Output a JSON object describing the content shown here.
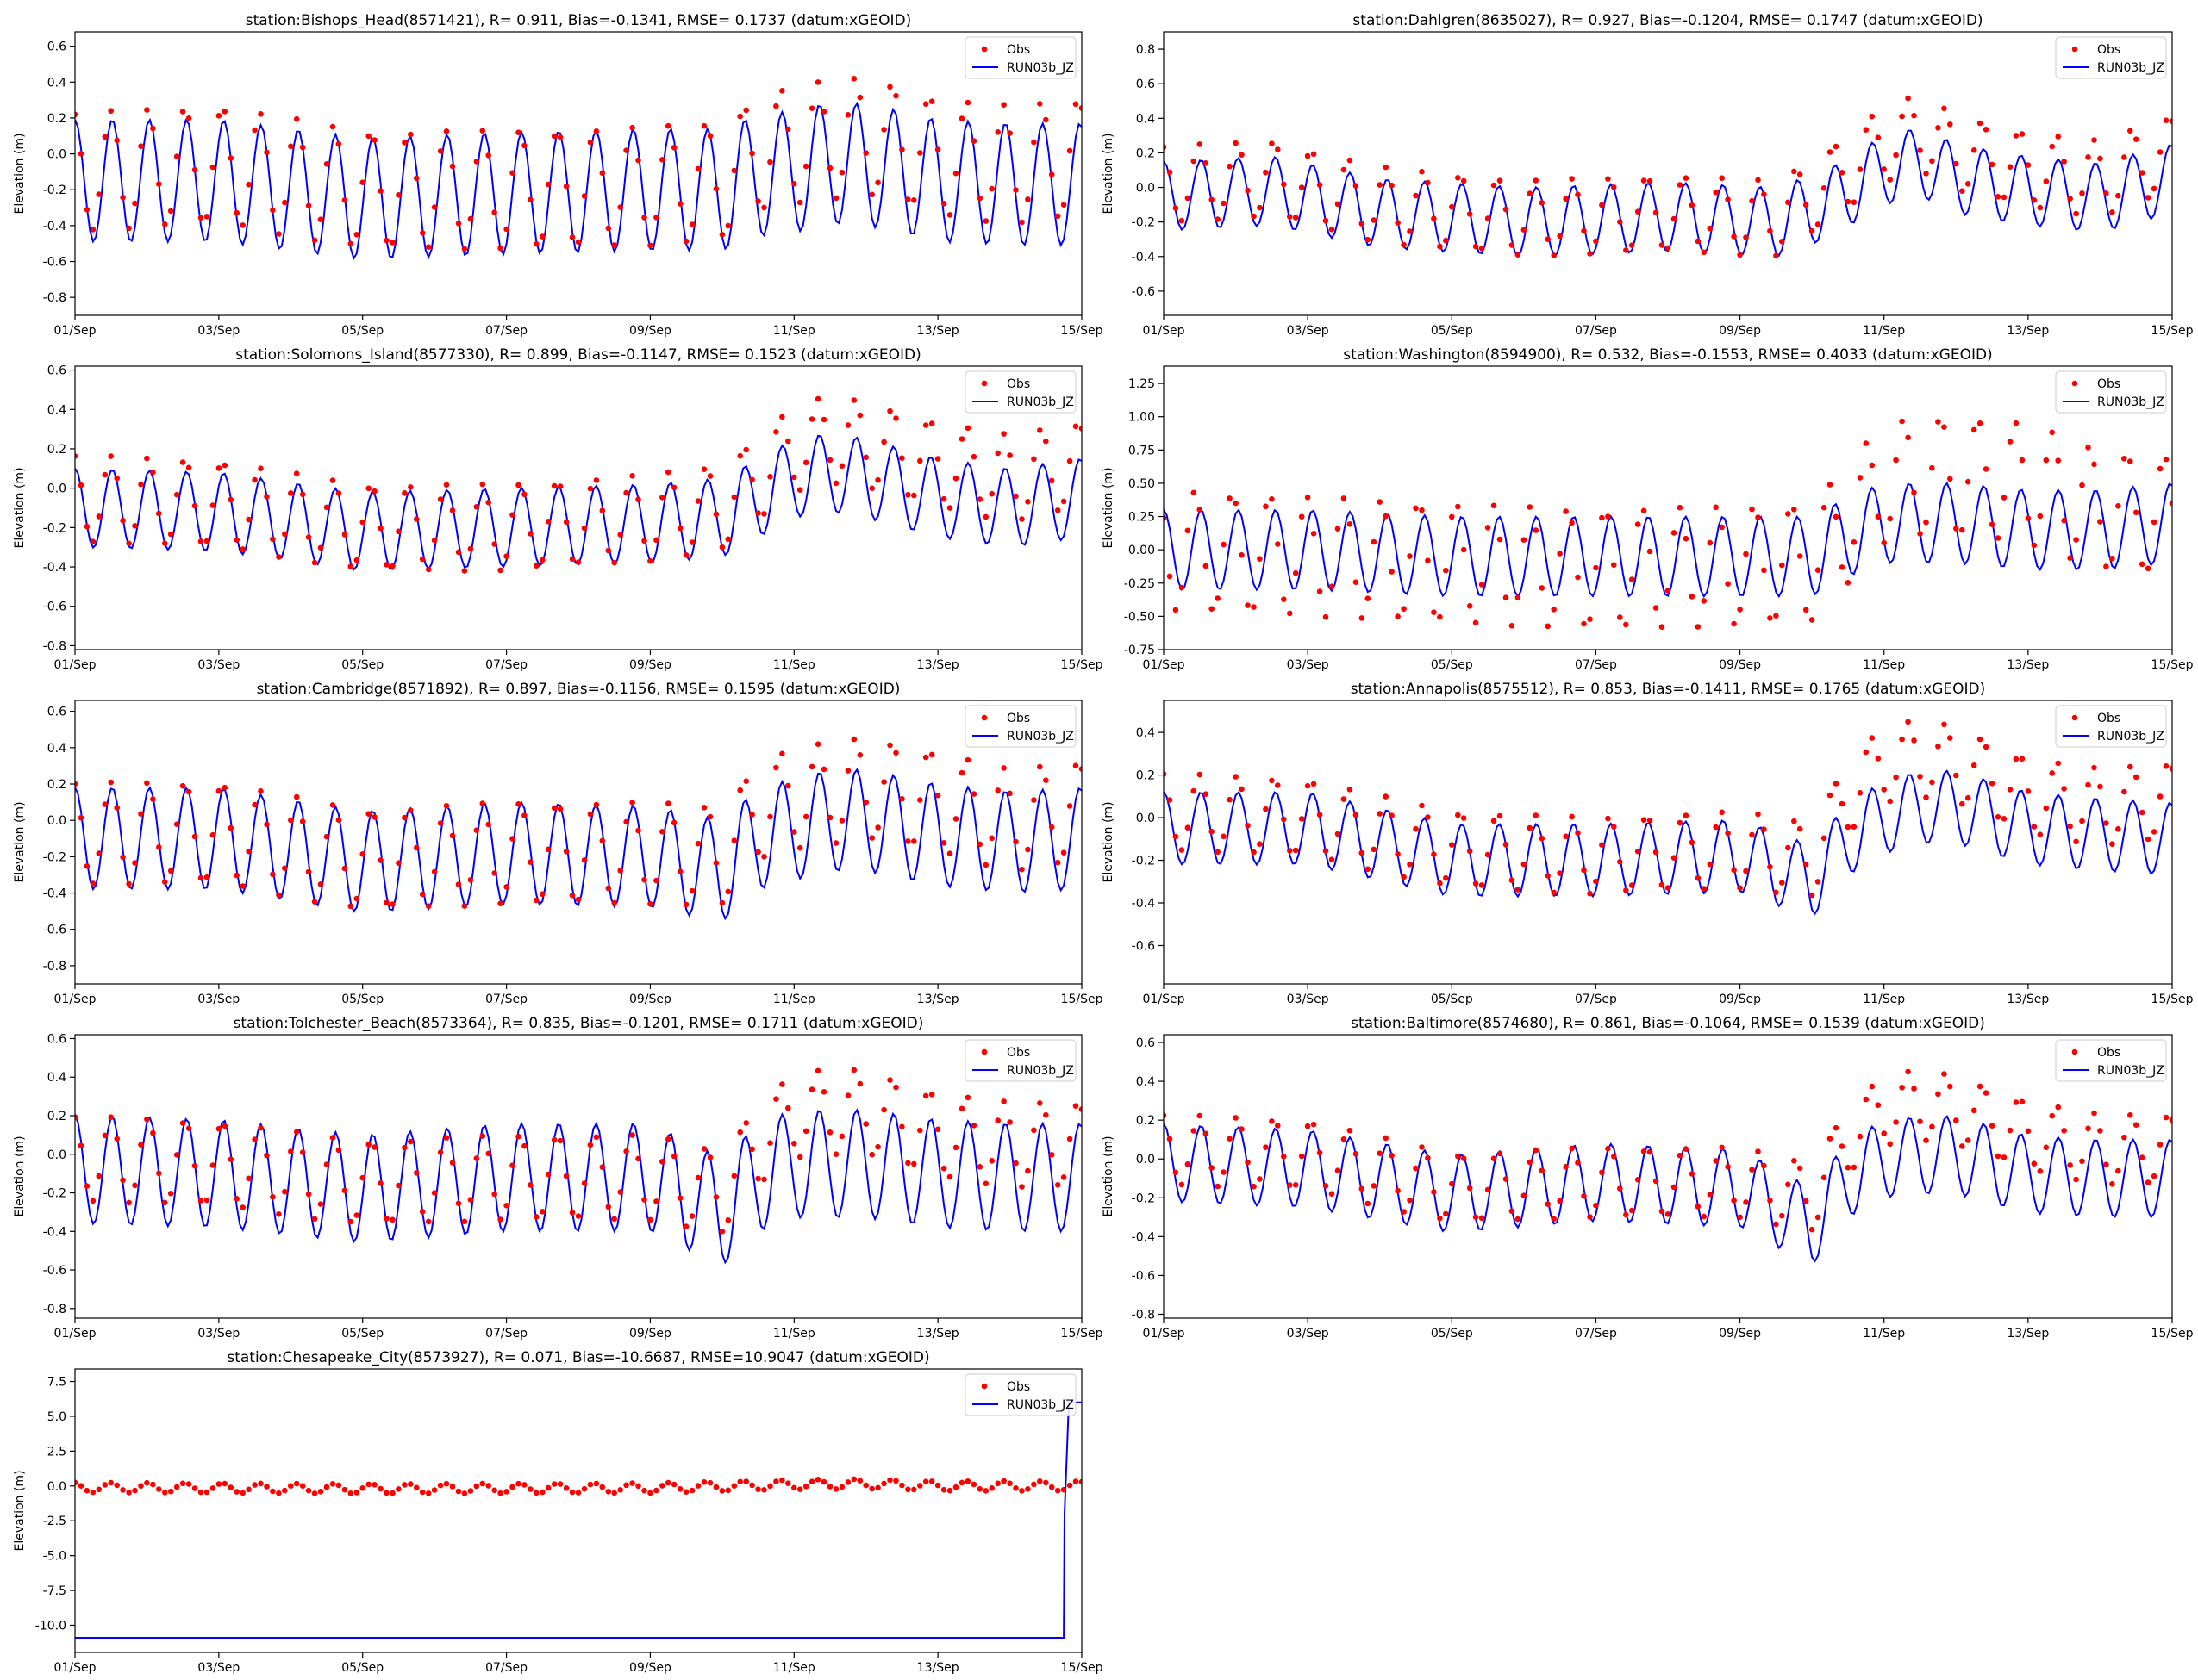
{
  "figure": {
    "background": "#ffffff"
  },
  "colors": {
    "obs": "#ff0000",
    "model": "#0000ff",
    "axis": "#000000"
  },
  "legend": {
    "obs_label": "Obs",
    "model_label": "RUN03b_JZ",
    "placement": "upper right"
  },
  "common": {
    "ylabel": "Elevation (m)",
    "xlim_days": [
      0,
      14
    ],
    "xticks": [
      "01/Sep",
      "03/Sep",
      "05/Sep",
      "07/Sep",
      "09/Sep",
      "11/Sep",
      "13/Sep",
      "15/Sep"
    ],
    "tide_period_hours": 12.42
  },
  "chart_data": [
    {
      "type": "line",
      "station": "Bishops_Head",
      "title": "station:Bishops_Head(8571421), R= 0.911, Bias=-0.1341, RMSE= 0.1737 (datum:xGEOID)",
      "ylim": [
        -0.9,
        0.68
      ],
      "yticks": [
        -0.8,
        -0.6,
        -0.4,
        -0.2,
        0.0,
        0.2,
        0.4,
        0.6
      ],
      "series": [
        {
          "name": "Obs",
          "kind": "points",
          "mean_x": [
            0,
            2,
            4,
            6,
            8,
            9,
            9.5,
            10,
            10.5,
            11,
            11.5,
            12,
            13,
            14
          ],
          "mean_y": [
            -0.1,
            -0.06,
            -0.2,
            -0.2,
            -0.18,
            -0.15,
            0.0,
            0.05,
            0.08,
            0.1,
            0.05,
            -0.02,
            -0.06,
            -0.02
          ],
          "amplitude": 0.33,
          "phase_hours": -0.5
        },
        {
          "name": "RUN03b_JZ",
          "kind": "line",
          "mean_x": [
            0,
            2,
            4,
            6,
            8,
            9,
            9.5,
            10,
            10.5,
            11,
            11.5,
            12,
            13,
            14
          ],
          "mean_y": [
            -0.15,
            -0.15,
            -0.25,
            -0.22,
            -0.2,
            -0.2,
            -0.12,
            -0.1,
            -0.05,
            -0.06,
            -0.1,
            -0.15,
            -0.17,
            -0.17
          ],
          "amplitude": 0.34,
          "phase_hours": 0.0
        }
      ]
    },
    {
      "type": "line",
      "station": "Dahlgren",
      "title": "station:Dahlgren(8635027), R= 0.927, Bias=-0.1204, RMSE= 0.1747 (datum:xGEOID)",
      "ylim": [
        -0.74,
        0.9
      ],
      "yticks": [
        -0.6,
        -0.4,
        -0.2,
        0.0,
        0.2,
        0.4,
        0.6,
        0.8
      ],
      "series": [
        {
          "name": "Obs",
          "kind": "points",
          "mean_x": [
            0,
            1.5,
            3,
            5,
            7,
            8.5,
            9.2,
            10,
            10.5,
            11,
            12,
            13,
            14
          ],
          "mean_y": [
            0.02,
            0.05,
            -0.1,
            -0.18,
            -0.15,
            -0.18,
            0.0,
            0.25,
            0.32,
            0.2,
            0.1,
            0.05,
            0.2
          ],
          "amplitude": 0.22,
          "phase_hours": -0.5
        },
        {
          "name": "RUN03b_JZ",
          "kind": "line",
          "mean_x": [
            0,
            1.5,
            3,
            5,
            7,
            8.5,
            9.2,
            10,
            10.5,
            11,
            12,
            13,
            14
          ],
          "mean_y": [
            -0.05,
            -0.02,
            -0.15,
            -0.2,
            -0.17,
            -0.2,
            -0.1,
            0.1,
            0.15,
            0.05,
            -0.02,
            -0.06,
            0.05
          ],
          "amplitude": 0.2,
          "phase_hours": 0.0
        }
      ]
    },
    {
      "type": "line",
      "station": "Solomons_Island",
      "title": "station:Solomons_Island(8577330), R= 0.899, Bias=-0.1147, RMSE= 0.1523 (datum:xGEOID)",
      "ylim": [
        -0.82,
        0.62
      ],
      "yticks": [
        -0.8,
        -0.6,
        -0.4,
        -0.2,
        0.0,
        0.2,
        0.4,
        0.6
      ],
      "series": [
        {
          "name": "Obs",
          "kind": "points",
          "mean_x": [
            0,
            2,
            4,
            6,
            8,
            9,
            9.5,
            10,
            10.5,
            11,
            12,
            13,
            14
          ],
          "mean_y": [
            -0.05,
            -0.08,
            -0.2,
            -0.2,
            -0.15,
            -0.1,
            0.05,
            0.2,
            0.25,
            0.22,
            0.12,
            0.05,
            0.12
          ],
          "amplitude": 0.22,
          "phase_hours": -0.5
        },
        {
          "name": "RUN03b_JZ",
          "kind": "line",
          "mean_x": [
            0,
            2,
            4,
            6,
            8,
            9,
            9.5,
            10,
            10.5,
            11,
            12,
            13,
            14
          ],
          "mean_y": [
            -0.1,
            -0.12,
            -0.22,
            -0.2,
            -0.18,
            -0.15,
            -0.05,
            0.05,
            0.08,
            0.05,
            -0.05,
            -0.1,
            -0.05
          ],
          "amplitude": 0.2,
          "phase_hours": 0.0
        }
      ]
    },
    {
      "type": "line",
      "station": "Washington",
      "title": "station:Washington(8594900), R= 0.532, Bias=-0.1553, RMSE= 0.4033 (datum:xGEOID)",
      "ylim": [
        -0.75,
        1.38
      ],
      "yticks": [
        -0.75,
        -0.5,
        -0.25,
        0.0,
        0.25,
        0.5,
        0.75,
        1.0,
        1.25
      ],
      "series": [
        {
          "name": "Obs",
          "kind": "points",
          "mean_x": [
            0,
            2,
            4,
            6,
            8,
            9,
            9.5,
            10,
            10.5,
            11,
            12,
            13,
            14
          ],
          "mean_y": [
            0.0,
            -0.05,
            -0.1,
            -0.15,
            -0.12,
            -0.1,
            0.2,
            0.5,
            0.55,
            0.55,
            0.5,
            0.3,
            0.25
          ],
          "amplitude": 0.45,
          "phase_hours": -2.0
        },
        {
          "name": "RUN03b_JZ",
          "kind": "line",
          "mean_x": [
            0,
            2,
            4,
            6,
            8,
            9,
            9.5,
            10,
            10.5,
            11,
            12,
            13,
            14
          ],
          "mean_y": [
            0.0,
            0.0,
            -0.05,
            -0.05,
            -0.05,
            -0.05,
            0.1,
            0.2,
            0.2,
            0.2,
            0.15,
            0.15,
            0.2
          ],
          "amplitude": 0.3,
          "phase_hours": 0.0
        }
      ]
    },
    {
      "type": "line",
      "station": "Cambridge",
      "title": "station:Cambridge(8571892), R= 0.897, Bias=-0.1156, RMSE= 0.1595 (datum:xGEOID)",
      "ylim": [
        -0.9,
        0.66
      ],
      "yticks": [
        -0.8,
        -0.6,
        -0.4,
        -0.2,
        0.0,
        0.2,
        0.4,
        0.6
      ],
      "series": [
        {
          "name": "Obs",
          "kind": "points",
          "mean_x": [
            0,
            2,
            4,
            6,
            8,
            9,
            9.5,
            10,
            10.5,
            11,
            12,
            13,
            14
          ],
          "mean_y": [
            -0.07,
            -0.07,
            -0.22,
            -0.18,
            -0.18,
            -0.2,
            0.05,
            0.12,
            0.15,
            0.18,
            0.1,
            0.0,
            0.05
          ],
          "amplitude": 0.28,
          "phase_hours": -0.5
        },
        {
          "name": "RUN03b_JZ",
          "kind": "line",
          "mean_x": [
            0,
            2,
            4,
            6,
            8,
            9,
            9.5,
            10,
            10.5,
            11,
            12,
            13,
            14
          ],
          "mean_y": [
            -0.1,
            -0.1,
            -0.23,
            -0.18,
            -0.2,
            -0.28,
            -0.1,
            -0.05,
            0.0,
            0.0,
            -0.08,
            -0.12,
            -0.1
          ],
          "amplitude": 0.28,
          "phase_hours": 0.0
        }
      ]
    },
    {
      "type": "line",
      "station": "Annapolis",
      "title": "station:Annapolis(8575512), R= 0.853, Bias=-0.1411, RMSE= 0.1765 (datum:xGEOID)",
      "ylim": [
        -0.78,
        0.55
      ],
      "yticks": [
        -0.6,
        -0.4,
        -0.2,
        0.0,
        0.2,
        0.4
      ],
      "series": [
        {
          "name": "Obs",
          "kind": "points",
          "mean_x": [
            0,
            2,
            4,
            6,
            8,
            9,
            9.5,
            10,
            10.5,
            11,
            12,
            13,
            14
          ],
          "mean_y": [
            0.03,
            0.0,
            -0.15,
            -0.18,
            -0.15,
            -0.2,
            0.1,
            0.25,
            0.28,
            0.25,
            0.1,
            0.05,
            0.08
          ],
          "amplitude": 0.18,
          "phase_hours": -0.5
        },
        {
          "name": "RUN03b_JZ",
          "kind": "line",
          "mean_x": [
            0,
            2,
            4,
            6,
            8,
            9,
            9.5,
            10,
            10.5,
            11,
            12,
            13,
            14
          ],
          "mean_y": [
            -0.05,
            -0.05,
            -0.2,
            -0.2,
            -0.18,
            -0.3,
            -0.1,
            0.0,
            0.05,
            0.05,
            -0.05,
            -0.08,
            -0.1
          ],
          "amplitude": 0.17,
          "phase_hours": 0.0
        }
      ]
    },
    {
      "type": "line",
      "station": "Tolchester_Beach",
      "title": "station:Tolchester_Beach(8573364), R= 0.835, Bias=-0.1201, RMSE= 0.1711 (datum:xGEOID)",
      "ylim": [
        -0.85,
        0.62
      ],
      "yticks": [
        -0.8,
        -0.6,
        -0.4,
        -0.2,
        0.0,
        0.2,
        0.4,
        0.6
      ],
      "series": [
        {
          "name": "Obs",
          "kind": "points",
          "mean_x": [
            0,
            2,
            4,
            6,
            8,
            9,
            9.5,
            10,
            10.5,
            11,
            12,
            13,
            14
          ],
          "mean_y": [
            -0.02,
            -0.05,
            -0.15,
            -0.12,
            -0.12,
            -0.2,
            0.05,
            0.2,
            0.22,
            0.22,
            0.1,
            0.05,
            0.05
          ],
          "amplitude": 0.22,
          "phase_hours": -0.5
        },
        {
          "name": "RUN03b_JZ",
          "kind": "line",
          "mean_x": [
            0,
            2,
            4,
            6,
            8,
            9,
            9.5,
            10,
            10.5,
            11,
            12,
            13,
            14
          ],
          "mean_y": [
            -0.08,
            -0.1,
            -0.18,
            -0.12,
            -0.12,
            -0.3,
            -0.12,
            -0.05,
            -0.05,
            -0.05,
            -0.1,
            -0.12,
            -0.12
          ],
          "amplitude": 0.28,
          "phase_hours": 0.0
        }
      ]
    },
    {
      "type": "line",
      "station": "Baltimore",
      "title": "station:Baltimore(8574680), R= 0.861, Bias=-0.1064, RMSE= 0.1539 (datum:xGEOID)",
      "ylim": [
        -0.82,
        0.64
      ],
      "yticks": [
        -0.8,
        -0.6,
        -0.4,
        -0.2,
        0.0,
        0.2,
        0.4,
        0.6
      ],
      "series": [
        {
          "name": "Obs",
          "kind": "points",
          "mean_x": [
            0,
            2,
            4,
            6,
            8,
            9,
            9.5,
            10,
            10.5,
            11,
            12,
            13,
            14
          ],
          "mean_y": [
            0.05,
            0.02,
            -0.15,
            -0.12,
            -0.12,
            -0.2,
            0.1,
            0.25,
            0.28,
            0.25,
            0.12,
            0.05,
            0.05
          ],
          "amplitude": 0.18,
          "phase_hours": -0.5
        },
        {
          "name": "RUN03b_JZ",
          "kind": "line",
          "mean_x": [
            0,
            2,
            4,
            6,
            8,
            9,
            9.5,
            10,
            10.5,
            11,
            12,
            13,
            14
          ],
          "mean_y": [
            -0.02,
            -0.05,
            -0.18,
            -0.12,
            -0.15,
            -0.35,
            -0.1,
            0.0,
            0.02,
            0.02,
            -0.08,
            -0.1,
            -0.1
          ],
          "amplitude": 0.2,
          "phase_hours": 0.0
        }
      ]
    },
    {
      "type": "line",
      "station": "Chesapeake_City",
      "title": "station:Chesapeake_City(8573927), R= 0.071, Bias=-10.6687, RMSE=10.9047 (datum:xGEOID)",
      "ylim": [
        -11.95,
        8.4
      ],
      "yticks": [
        -10.0,
        -7.5,
        -5.0,
        -2.5,
        0.0,
        2.5,
        5.0,
        7.5
      ],
      "series": [
        {
          "name": "Obs",
          "kind": "points",
          "mean_x": [
            0,
            4,
            8,
            10,
            11,
            12,
            14
          ],
          "mean_y": [
            -0.1,
            -0.2,
            -0.15,
            0.1,
            0.15,
            0.0,
            0.0
          ],
          "amplitude": 0.35,
          "phase_hours": -0.5
        },
        {
          "name": "RUN03b_JZ",
          "kind": "line",
          "x": [
            0,
            13.75,
            13.76,
            13.82,
            14
          ],
          "y": [
            -10.9,
            -10.9,
            -2.0,
            6.0,
            6.0
          ]
        }
      ]
    }
  ]
}
